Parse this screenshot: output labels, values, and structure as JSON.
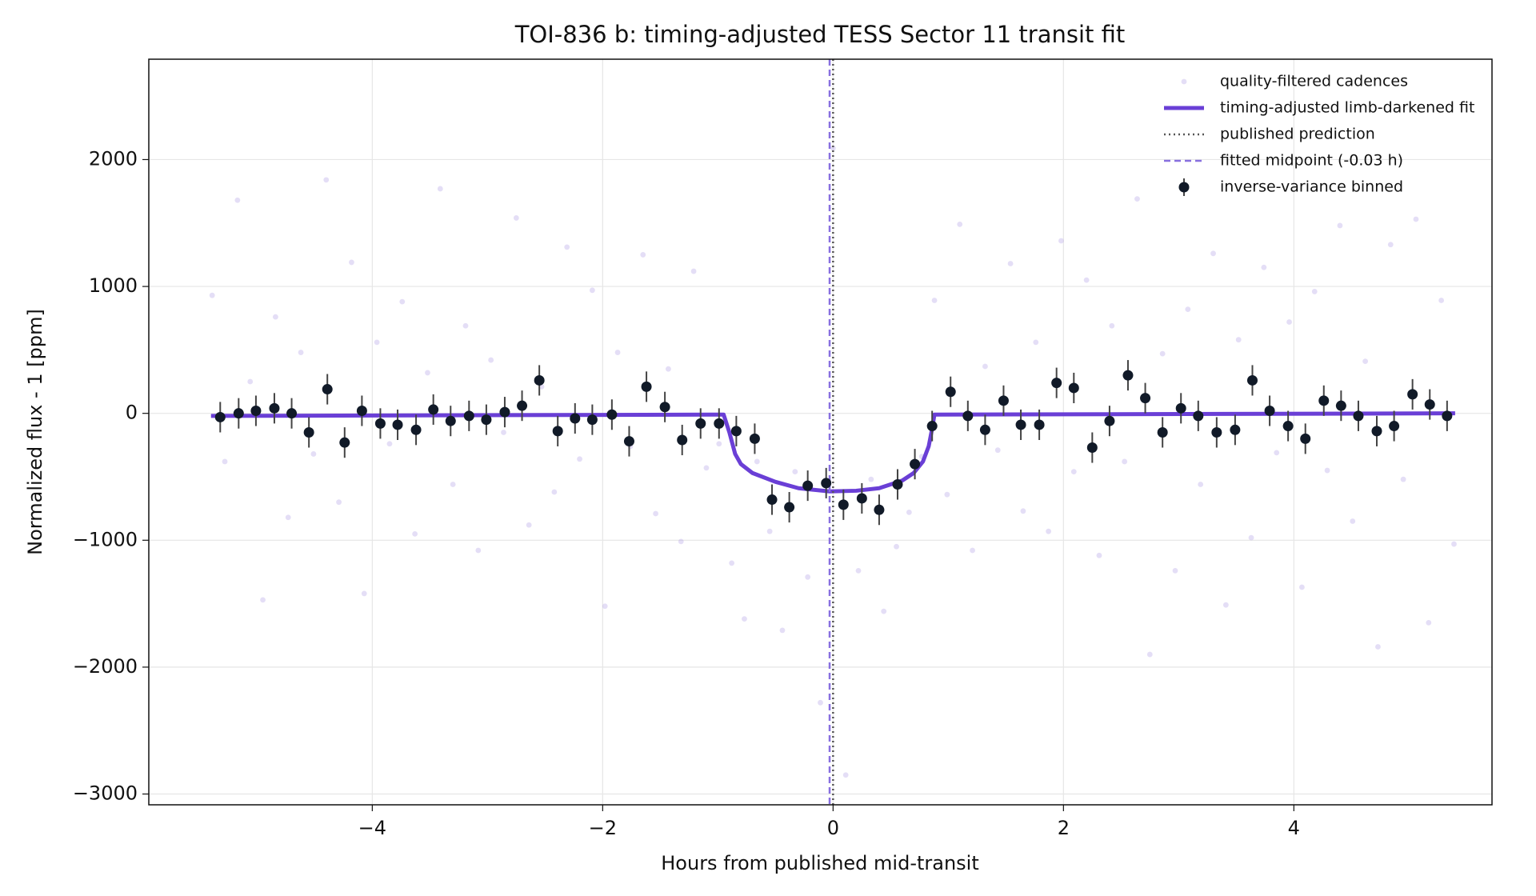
{
  "chart_data": {
    "type": "scatter",
    "title": "TOI-836 b: timing-adjusted TESS Sector 11 transit fit",
    "x_label": "Hours from published mid-transit",
    "y_label": "Normalized flux - 1 [ppm]",
    "xlim": [
      -5.94,
      5.72
    ],
    "ylim": [
      -3085,
      2791
    ],
    "xticks": [
      {
        "value": -4,
        "label": "−4"
      },
      {
        "value": -2,
        "label": "−2"
      },
      0,
      2,
      4
    ],
    "yticks": [
      {
        "value": -3000,
        "label": "−3000"
      },
      {
        "value": -2000,
        "label": "−2000"
      },
      {
        "value": -1000,
        "label": "−1000"
      },
      0,
      1000,
      2000
    ],
    "grid": true,
    "legend": "upper right",
    "series": [
      {
        "name": "quality-filtered cadences",
        "type": "scatter",
        "color": "#a593e0",
        "x": [
          -5.39,
          -5.28,
          -5.17,
          -5.06,
          -4.95,
          -4.84,
          -4.73,
          -4.62,
          -4.51,
          -4.4,
          -4.29,
          -4.18,
          -4.07,
          -3.96,
          -3.85,
          -3.74,
          -3.63,
          -3.52,
          -3.41,
          -3.3,
          -3.19,
          -3.08,
          -2.97,
          -2.86,
          -2.75,
          -2.64,
          -2.53,
          -2.42,
          -2.31,
          -2.2,
          -2.09,
          -1.98,
          -1.87,
          -1.76,
          -1.65,
          -1.54,
          -1.43,
          -1.32,
          -1.21,
          -1.1,
          -0.99,
          -0.88,
          -0.77,
          -0.66,
          -0.55,
          -0.44,
          -0.33,
          -0.22,
          -0.11,
          0.0,
          0.11,
          0.22,
          0.33,
          0.44,
          0.55,
          0.66,
          0.77,
          0.88,
          0.99,
          1.1,
          1.21,
          1.32,
          1.43,
          1.54,
          1.65,
          1.76,
          1.87,
          1.98,
          2.09,
          2.2,
          2.31,
          2.42,
          2.53,
          2.64,
          2.75,
          2.86,
          2.97,
          3.08,
          3.19,
          3.3,
          3.41,
          3.52,
          3.63,
          3.74,
          3.85,
          3.96,
          4.07,
          4.18,
          4.29,
          4.4,
          4.51,
          4.62,
          4.73,
          4.84,
          4.95,
          5.06,
          5.17,
          5.28,
          5.39
        ],
        "values": [
          930,
          -380,
          1680,
          250,
          -1470,
          760,
          -820,
          480,
          -320,
          1840,
          -700,
          1190,
          -1420,
          560,
          -240,
          880,
          -950,
          320,
          1770,
          -560,
          690,
          -1080,
          420,
          -150,
          1540,
          -880,
          210,
          -620,
          1310,
          -360,
          970,
          -1520,
          480,
          -260,
          1250,
          -790,
          350,
          -1010,
          1120,
          -430,
          -240,
          -1180,
          -1620,
          -380,
          -930,
          -1710,
          -460,
          -1290,
          -2280,
          2090,
          -2850,
          -1240,
          -520,
          -1560,
          -1050,
          -780,
          -340,
          890,
          -640,
          1490,
          -1080,
          370,
          -290,
          1180,
          -770,
          560,
          -930,
          1360,
          -460,
          1050,
          -1120,
          690,
          -380,
          1690,
          -1900,
          470,
          -1240,
          820,
          -560,
          1260,
          -1510,
          580,
          -980,
          1150,
          -310,
          720,
          -1370,
          960,
          -450,
          1480,
          -850,
          410,
          -1840,
          1330,
          -520,
          1530,
          -1650,
          890,
          -1030
        ]
      },
      {
        "name": "timing-adjusted limb-darkened fit",
        "type": "line",
        "color": "#6a3fd6",
        "x": [
          -5.4,
          -0.95,
          -0.9,
          -0.85,
          -0.8,
          -0.7,
          -0.5,
          -0.3,
          -0.03,
          0.2,
          0.4,
          0.6,
          0.7,
          0.78,
          0.83,
          0.86,
          0.88,
          5.4
        ],
        "values": [
          -20,
          -10,
          -150,
          -320,
          -400,
          -470,
          -540,
          -590,
          -615,
          -610,
          -590,
          -530,
          -470,
          -380,
          -260,
          -120,
          -10,
          0
        ]
      },
      {
        "name": "published prediction",
        "type": "vline",
        "color": "#555555",
        "style": "dotted",
        "x": 0
      },
      {
        "name": "fitted midpoint (-0.03 h)",
        "type": "vline",
        "color": "#8870e0",
        "style": "dashed",
        "x": -0.03
      },
      {
        "name": "inverse-variance binned",
        "type": "errorbar",
        "color": "#111a28",
        "error_color": "#444444",
        "x": [
          -5.32,
          -5.16,
          -5.01,
          -4.85,
          -4.7,
          -4.55,
          -4.39,
          -4.24,
          -4.09,
          -3.93,
          -3.78,
          -3.62,
          -3.47,
          -3.32,
          -3.16,
          -3.01,
          -2.85,
          -2.7,
          -2.55,
          -2.39,
          -2.24,
          -2.09,
          -1.92,
          -1.77,
          -1.62,
          -1.46,
          -1.31,
          -1.15,
          -0.99,
          -0.84,
          -0.68,
          -0.53,
          -0.38,
          -0.22,
          -0.06,
          0.09,
          0.25,
          0.4,
          0.56,
          0.71,
          0.86,
          1.02,
          1.17,
          1.32,
          1.48,
          1.63,
          1.79,
          1.94,
          2.09,
          2.25,
          2.4,
          2.56,
          2.71,
          2.86,
          3.02,
          3.17,
          3.33,
          3.49,
          3.64,
          3.79,
          3.95,
          4.1,
          4.26,
          4.41,
          4.56,
          4.72,
          4.87,
          5.03,
          5.18,
          5.33
        ],
        "values": [
          -30,
          0,
          20,
          40,
          0,
          -150,
          190,
          -230,
          20,
          -80,
          -90,
          -130,
          30,
          -60,
          -20,
          -50,
          10,
          60,
          260,
          -140,
          -40,
          -50,
          -10,
          -220,
          210,
          50,
          -210,
          -80,
          -80,
          -140,
          -200,
          -680,
          -740,
          -570,
          -550,
          -720,
          -670,
          -760,
          -560,
          -400,
          -100,
          170,
          -20,
          -130,
          100,
          -90,
          -90,
          240,
          200,
          -270,
          -60,
          300,
          120,
          -150,
          40,
          -20,
          -150,
          -130,
          260,
          20,
          -100,
          -200,
          100,
          60,
          -20,
          -140,
          -100,
          150,
          70,
          -20
        ],
        "errors": [
          120,
          120,
          120,
          120,
          120,
          120,
          120,
          120,
          120,
          120,
          120,
          120,
          120,
          120,
          120,
          120,
          120,
          120,
          120,
          120,
          120,
          120,
          120,
          120,
          120,
          120,
          120,
          120,
          120,
          120,
          120,
          120,
          120,
          120,
          120,
          120,
          120,
          120,
          120,
          120,
          120,
          120,
          120,
          120,
          120,
          120,
          120,
          120,
          120,
          120,
          120,
          120,
          120,
          120,
          120,
          120,
          120,
          120,
          120,
          120,
          120,
          120,
          120,
          120,
          120,
          120,
          120,
          120,
          120,
          120
        ]
      }
    ]
  }
}
